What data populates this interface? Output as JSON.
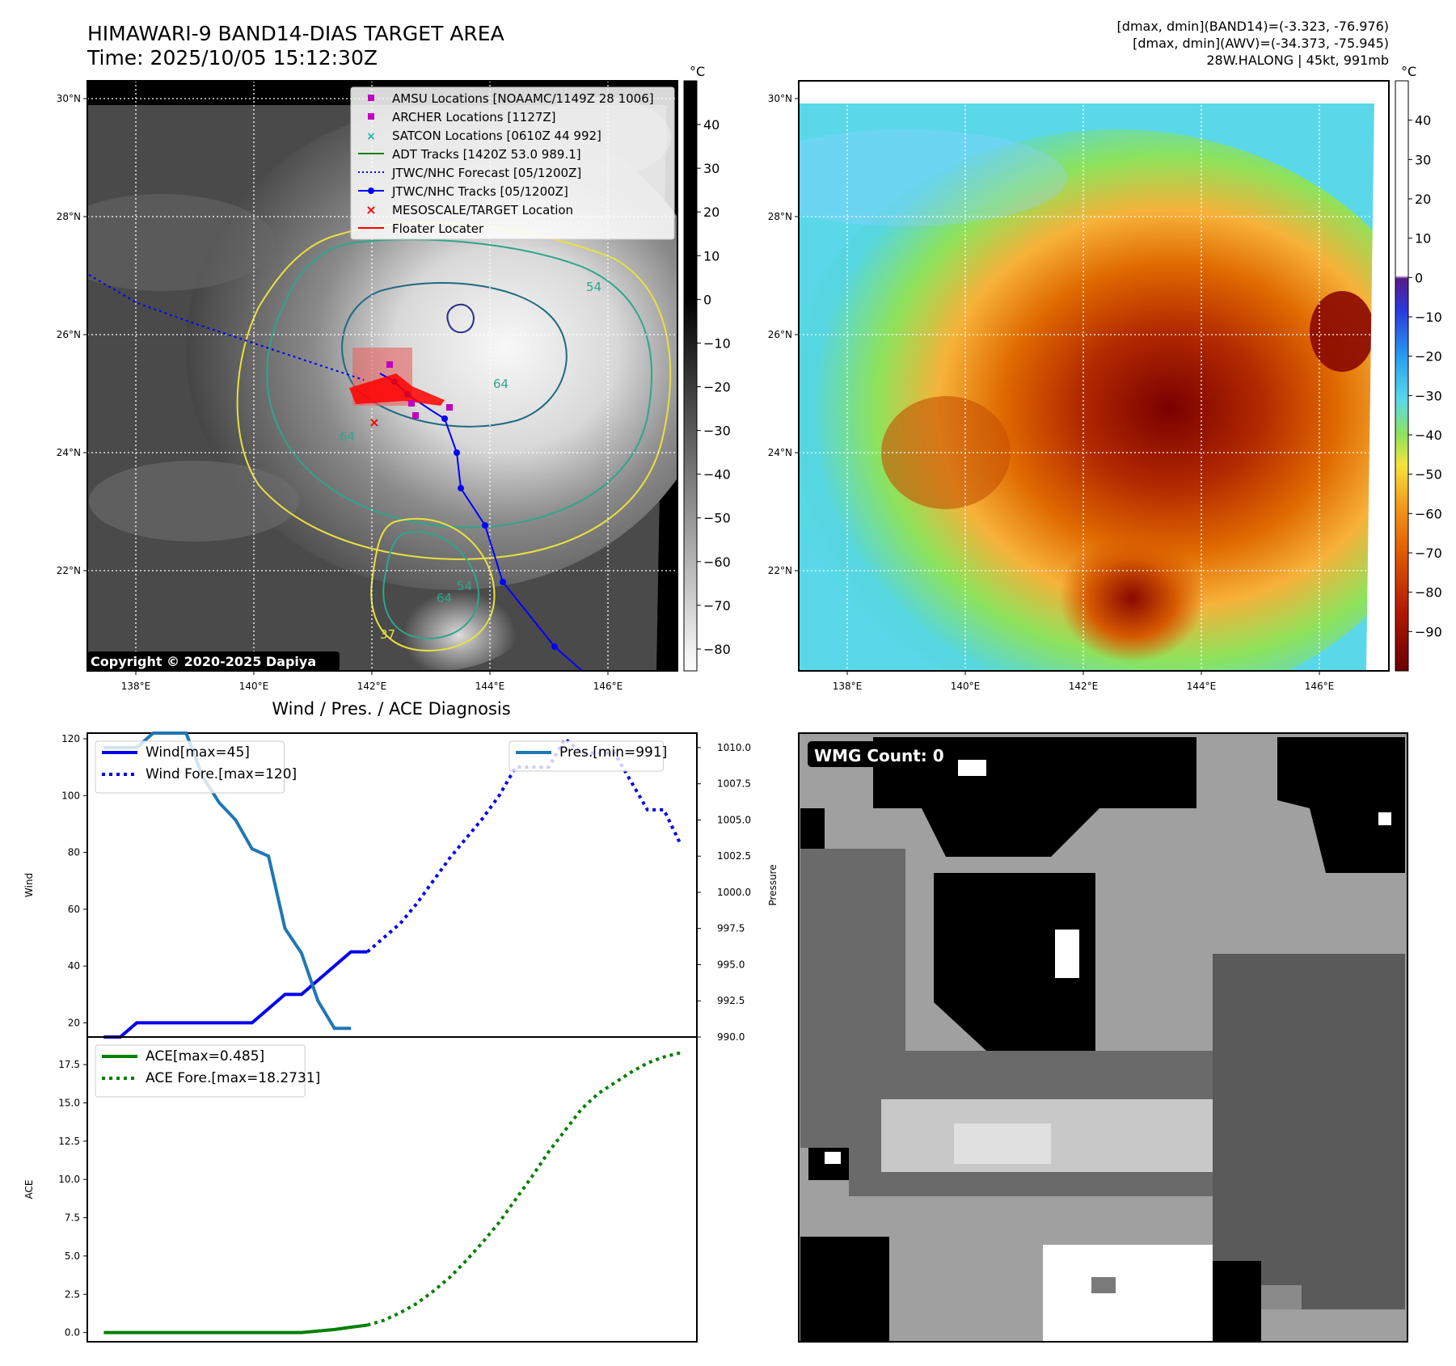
{
  "header": {
    "title_line1": "HIMAWARI-9 BAND14-DIAS TARGET AREA",
    "title_line2": "Time: 2025/10/05 15:12:30Z",
    "info_line1": "[dmax, dmin](BAND14)=(-3.323, -76.976)",
    "info_line2": "[dmax, dmin](AWV)=(-34.373, -75.945)",
    "info_line3": "28W.HALONG | 45kt, 991mb"
  },
  "maps": {
    "lon_labels": [
      "138°E",
      "140°E",
      "142°E",
      "144°E",
      "146°E"
    ],
    "lat_labels": [
      "30°N",
      "28°N",
      "26°N",
      "24°N",
      "22°N"
    ],
    "copyright": "Copyright © 2020-2025 Dapiya",
    "contour_labels": [
      "64",
      "54",
      "64",
      "54",
      "64",
      "37"
    ],
    "legend": [
      {
        "label": "AMSU Locations [NOAAMC/1149Z 28 1006]",
        "color": "#c000c0",
        "marker": "square"
      },
      {
        "label": "ARCHER Locations [1127Z]",
        "color": "#c000c0",
        "marker": "square"
      },
      {
        "label": "SATCON Locations [0610Z 44 992]",
        "color": "#17b3b3",
        "marker": "x"
      },
      {
        "label": "ADT Tracks [1420Z 53.0 989.1]",
        "color": "#008000",
        "marker": "line"
      },
      {
        "label": "JTWC/NHC Forecast [05/1200Z]",
        "color": "#0000ff",
        "marker": "dotted"
      },
      {
        "label": "JTWC/NHC Tracks [05/1200Z]",
        "color": "#0000ff",
        "marker": "line-dot"
      },
      {
        "label": "MESOSCALE/TARGET Location",
        "color": "#ff0000",
        "marker": "x"
      },
      {
        "label": "Floater Locater",
        "color": "#ff0000",
        "marker": "line"
      }
    ],
    "gray_colorbar": {
      "unit": "°C",
      "ticks": [
        "40",
        "30",
        "20",
        "10",
        "0",
        "−10",
        "−20",
        "−30",
        "−40",
        "−50",
        "−60",
        "−70",
        "−80"
      ]
    },
    "color_colorbar": {
      "unit": "°C",
      "ticks": [
        "40",
        "30",
        "20",
        "10",
        "0",
        "−10",
        "−20",
        "−30",
        "−40",
        "−50",
        "−60",
        "−70",
        "−80",
        "−90"
      ]
    }
  },
  "wmg": {
    "label": "WMG Count: 0"
  },
  "chart_data": {
    "type": "line",
    "title": "Wind / Pres. / ACE Diagnosis",
    "panels": [
      {
        "id": "wind-pressure",
        "ylabel_left": "Wind",
        "ylabel_right": "Pressure",
        "ylim_left": [
          15,
          122
        ],
        "ylim_right": [
          990.0,
          1011.0
        ],
        "yticks_left": [
          "20",
          "40",
          "60",
          "80",
          "100",
          "120"
        ],
        "yticks_right": [
          "990.0",
          "992.5",
          "995.0",
          "997.5",
          "1000.0",
          "1002.5",
          "1005.0",
          "1007.5",
          "1010.0"
        ],
        "legend_left": [
          "Wind[max=45]",
          "Wind Fore.[max=120]"
        ],
        "legend_right": [
          "Pres.[min=991]"
        ],
        "x_range": [
          -1,
          36
        ],
        "series": [
          {
            "name": "Wind[max=45]",
            "axis": "left",
            "color": "#0000ee",
            "style": "solid",
            "x": [
              0,
              1,
              2,
              3,
              4,
              5,
              6,
              7,
              8,
              9,
              10,
              11,
              12,
              13,
              14,
              15,
              16
            ],
            "values": [
              15,
              15,
              20,
              20,
              20,
              20,
              20,
              20,
              20,
              20,
              25,
              30,
              30,
              35,
              40,
              45,
              45
            ]
          },
          {
            "name": "Wind Fore.[max=120]",
            "axis": "left",
            "color": "#0000ee",
            "style": "dotted",
            "x": [
              16,
              17,
              18,
              19,
              20,
              21,
              22,
              23,
              24,
              25,
              26,
              27,
              28,
              29,
              30,
              31,
              32,
              33,
              34,
              35
            ],
            "values": [
              45,
              50,
              55,
              62,
              70,
              78,
              85,
              92,
              100,
              110,
              110,
              110,
              120,
              115,
              115,
              115,
              105,
              95,
              95,
              83
            ]
          },
          {
            "name": "Pres.[min=991]",
            "axis": "right",
            "color": "#1f77b4",
            "style": "solid",
            "x": [
              0,
              1,
              2,
              3,
              4,
              5,
              6,
              7,
              8,
              9,
              10,
              11,
              12,
              13,
              14,
              15
            ],
            "values": [
              1010,
              1010,
              1010,
              1011,
              1011,
              1011,
              1008,
              1006.2,
              1005,
              1003,
              1002.5,
              997.5,
              995.8,
              992.5,
              990.6,
              990.6
            ]
          }
        ]
      },
      {
        "id": "ace",
        "ylabel_left": "ACE",
        "ylim_left": [
          -0.6,
          19.3
        ],
        "yticks_left": [
          "0.0",
          "2.5",
          "5.0",
          "7.5",
          "10.0",
          "12.5",
          "15.0",
          "17.5"
        ],
        "legend_left": [
          "ACE[max=0.485]",
          "ACE Fore.[max=18.2731]"
        ],
        "x_range": [
          -1,
          36
        ],
        "series": [
          {
            "name": "ACE[max=0.485]",
            "axis": "left",
            "color": "#008000",
            "style": "solid",
            "x": [
              0,
              1,
              2,
              3,
              4,
              5,
              6,
              7,
              8,
              9,
              10,
              11,
              12,
              13,
              14,
              15,
              16
            ],
            "values": [
              0,
              0,
              0,
              0,
              0,
              0,
              0,
              0,
              0,
              0,
              0,
              0,
              0,
              0.1,
              0.2,
              0.35,
              0.485
            ]
          },
          {
            "name": "ACE Fore.[max=18.2731]",
            "axis": "left",
            "color": "#008000",
            "style": "dotted",
            "x": [
              16,
              17,
              18,
              19,
              20,
              21,
              22,
              23,
              24,
              25,
              26,
              27,
              28,
              29,
              30,
              31,
              32,
              33,
              34,
              35
            ],
            "values": [
              0.485,
              0.8,
              1.3,
              1.9,
              2.7,
              3.6,
              4.7,
              5.9,
              7.2,
              8.7,
              10.2,
              11.8,
              13.2,
              14.6,
              15.6,
              16.3,
              17.0,
              17.6,
              18.0,
              18.27
            ]
          }
        ]
      }
    ]
  }
}
